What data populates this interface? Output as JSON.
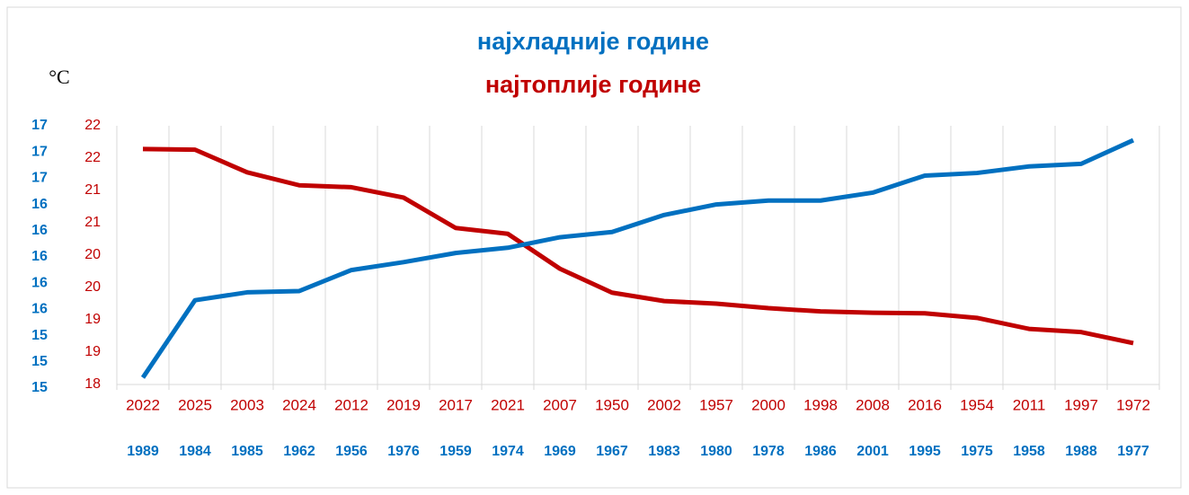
{
  "chart_data": {
    "type": "line",
    "title": "најхладније године",
    "subtitle": "најтоплије године",
    "unit_label": "°C",
    "categories": [
      "2022",
      "2025",
      "2003",
      "2024",
      "2012",
      "2019",
      "2017",
      "2021",
      "2007",
      "1950",
      "2002",
      "1957",
      "2000",
      "1998",
      "2008",
      "2016",
      "1954",
      "2011",
      "1997",
      "1972"
    ],
    "categories2": [
      "1989",
      "1984",
      "1985",
      "1962",
      "1956",
      "1976",
      "1959",
      "1974",
      "1969",
      "1967",
      "1983",
      "1980",
      "1978",
      "1986",
      "2001",
      "1995",
      "1975",
      "1958",
      "1988",
      "1977"
    ],
    "series": [
      {
        "name": "најтоплије године",
        "color": "#c00000",
        "axis": "y",
        "values": [
          21.64,
          21.63,
          21.28,
          21.08,
          21.05,
          20.89,
          20.42,
          20.33,
          19.79,
          19.42,
          19.29,
          19.25,
          19.18,
          19.13,
          19.11,
          19.1,
          19.03,
          18.86,
          18.81,
          18.64
        ]
      },
      {
        "name": "најхладније године",
        "color": "#0070c0",
        "axis": "y2",
        "values": [
          15.08,
          15.67,
          15.73,
          15.74,
          15.9,
          15.96,
          16.03,
          16.07,
          16.15,
          16.19,
          16.32,
          16.4,
          16.43,
          16.43,
          16.49,
          16.62,
          16.64,
          16.69,
          16.71,
          16.89
        ]
      }
    ],
    "ylim": [
      18,
      22
    ],
    "yticks": [
      18,
      {
        "value": 18.5,
        "label": "19"
      },
      19,
      {
        "value": 19.5,
        "label": "20"
      },
      20,
      {
        "value": 20.5,
        "label": "21"
      },
      21,
      {
        "value": 21.5,
        "label": "22"
      },
      22
    ],
    "y2lim": [
      15,
      17
    ],
    "y2ticks": [
      15,
      {
        "value": 15.2,
        "label": "15"
      },
      {
        "value": 15.4,
        "label": "15"
      },
      {
        "value": 15.6,
        "label": "16"
      },
      {
        "value": 15.8,
        "label": "16"
      },
      16,
      {
        "value": 16.2,
        "label": "16"
      },
      {
        "value": 16.4,
        "label": "16"
      },
      {
        "value": 16.6,
        "label": "17"
      },
      {
        "value": 16.8,
        "label": "17"
      },
      17
    ]
  }
}
